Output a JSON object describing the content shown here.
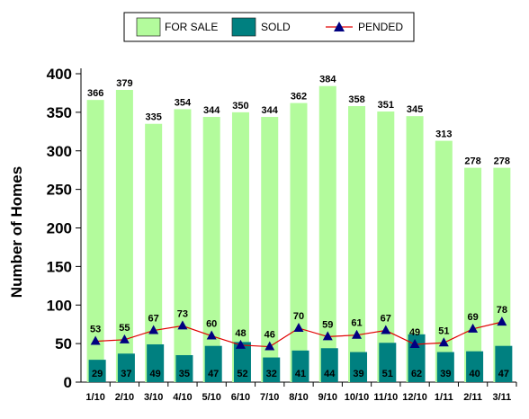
{
  "chart_data": {
    "type": "bar",
    "ylabel": "Number of Homes",
    "xlabel": "",
    "ylim": [
      0,
      400
    ],
    "yticks": [
      0,
      50,
      100,
      150,
      200,
      250,
      300,
      350,
      400
    ],
    "categories": [
      "1/10",
      "2/10",
      "3/10",
      "4/10",
      "5/10",
      "6/10",
      "7/10",
      "8/10",
      "9/10",
      "10/10",
      "11/10",
      "12/10",
      "1/11",
      "2/11",
      "3/11"
    ],
    "series": [
      {
        "name": "FOR SALE",
        "kind": "bar",
        "color": "#b3fb9c",
        "values": [
          366,
          379,
          335,
          354,
          344,
          350,
          344,
          362,
          384,
          358,
          351,
          345,
          313,
          278,
          278
        ]
      },
      {
        "name": "SOLD",
        "kind": "bar",
        "color": "#008080",
        "values": [
          29,
          37,
          49,
          35,
          47,
          52,
          32,
          41,
          44,
          39,
          51,
          62,
          39,
          40,
          47
        ]
      },
      {
        "name": "PENDED",
        "kind": "line",
        "color": "#e00000",
        "marker_color": "#000080",
        "values": [
          53,
          55,
          67,
          73,
          60,
          48,
          46,
          70,
          59,
          61,
          67,
          49,
          51,
          69,
          78
        ]
      }
    ],
    "legend": {
      "position": "top"
    },
    "grid": false
  }
}
